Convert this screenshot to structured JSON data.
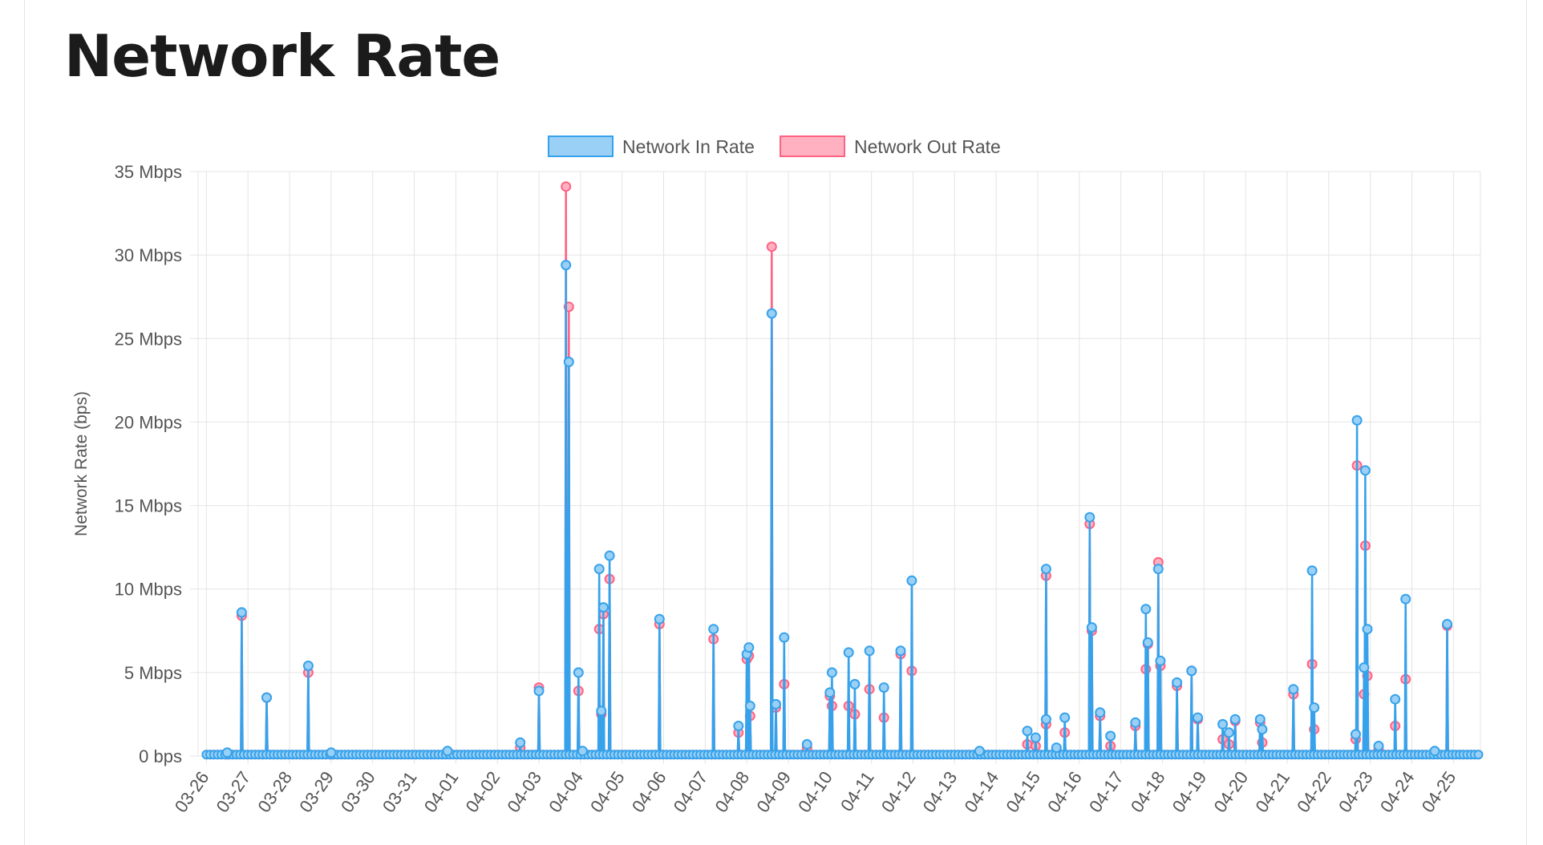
{
  "page": {
    "title": "Network Rate"
  },
  "chart_data": {
    "type": "line",
    "title": "Network Rate",
    "xlabel": "",
    "ylabel": "Network Rate (bps)",
    "ylim": [
      0,
      35
    ],
    "y_unit": "Mbps",
    "y_ticks": [
      "0 bps",
      "5 Mbps",
      "10 Mbps",
      "15 Mbps",
      "20 Mbps",
      "25 Mbps",
      "30 Mbps",
      "35 Mbps"
    ],
    "x_ticks": [
      "03-26",
      "03-27",
      "03-28",
      "03-29",
      "03-30",
      "03-31",
      "04-01",
      "04-02",
      "04-03",
      "04-04",
      "04-05",
      "04-06",
      "04-07",
      "04-08",
      "04-09",
      "04-10",
      "04-11",
      "04-12",
      "04-13",
      "04-14",
      "04-15",
      "04-16",
      "04-17",
      "04-18",
      "04-19",
      "04-20",
      "04-21",
      "04-22",
      "04-23",
      "04-24",
      "04-25"
    ],
    "xlim": [
      -0.2,
      30.65
    ],
    "grid": true,
    "legend_position": "top",
    "series": [
      {
        "name": "Network In Rate",
        "color": "#36a2eb",
        "fill": "#9ad0f5",
        "points": [
          [
            0.85,
            8.6
          ],
          [
            1.45,
            3.5
          ],
          [
            2.45,
            5.4
          ],
          [
            8.0,
            3.9
          ],
          [
            8.65,
            29.4
          ],
          [
            8.72,
            23.6
          ],
          [
            8.95,
            5.0
          ],
          [
            9.45,
            11.2
          ],
          [
            9.5,
            2.7
          ],
          [
            9.55,
            8.9
          ],
          [
            9.7,
            12.0
          ],
          [
            10.9,
            8.2
          ],
          [
            12.2,
            7.6
          ],
          [
            12.8,
            1.8
          ],
          [
            13.0,
            6.1
          ],
          [
            13.05,
            6.5
          ],
          [
            13.08,
            3.0
          ],
          [
            13.6,
            26.5
          ],
          [
            13.7,
            3.1
          ],
          [
            13.9,
            7.1
          ],
          [
            15.0,
            3.8
          ],
          [
            15.05,
            5.0
          ],
          [
            15.45,
            6.2
          ],
          [
            15.6,
            4.3
          ],
          [
            15.95,
            6.3
          ],
          [
            16.3,
            4.1
          ],
          [
            16.7,
            6.3
          ],
          [
            16.97,
            10.5
          ],
          [
            19.75,
            1.5
          ],
          [
            19.95,
            1.1
          ],
          [
            20.2,
            11.2
          ],
          [
            20.2,
            2.2
          ],
          [
            20.65,
            2.3
          ],
          [
            21.25,
            14.3
          ],
          [
            21.3,
            7.7
          ],
          [
            21.5,
            2.6
          ],
          [
            21.75,
            1.2
          ],
          [
            22.35,
            2.0
          ],
          [
            22.6,
            8.8
          ],
          [
            22.65,
            6.8
          ],
          [
            22.9,
            11.2
          ],
          [
            22.95,
            5.7
          ],
          [
            23.35,
            4.4
          ],
          [
            23.7,
            5.1
          ],
          [
            23.85,
            2.3
          ],
          [
            24.45,
            1.9
          ],
          [
            24.6,
            1.4
          ],
          [
            24.75,
            2.2
          ],
          [
            25.35,
            2.2
          ],
          [
            25.4,
            1.6
          ],
          [
            26.15,
            4.0
          ],
          [
            26.6,
            11.1
          ],
          [
            26.65,
            2.9
          ],
          [
            27.65,
            1.3
          ],
          [
            27.68,
            20.1
          ],
          [
            27.85,
            5.3
          ],
          [
            27.88,
            17.1
          ],
          [
            27.93,
            7.6
          ],
          [
            28.6,
            3.4
          ],
          [
            28.85,
            9.4
          ],
          [
            29.85,
            7.9
          ],
          [
            0.5,
            0.2
          ],
          [
            3.0,
            0.2
          ],
          [
            5.8,
            0.3
          ],
          [
            7.55,
            0.8
          ],
          [
            9.05,
            0.3
          ],
          [
            14.45,
            0.7
          ],
          [
            18.6,
            0.3
          ],
          [
            20.45,
            0.5
          ],
          [
            28.2,
            0.6
          ],
          [
            29.55,
            0.3
          ]
        ]
      },
      {
        "name": "Network Out Rate",
        "color": "#ff6384",
        "fill": "#ffb1c1",
        "points": [
          [
            0.85,
            8.4
          ],
          [
            1.45,
            3.5
          ],
          [
            2.45,
            5.0
          ],
          [
            8.0,
            4.1
          ],
          [
            8.65,
            34.1
          ],
          [
            8.72,
            26.9
          ],
          [
            8.95,
            3.9
          ],
          [
            9.45,
            7.6
          ],
          [
            9.5,
            2.5
          ],
          [
            9.55,
            8.5
          ],
          [
            9.7,
            10.6
          ],
          [
            10.9,
            7.9
          ],
          [
            12.2,
            7.0
          ],
          [
            12.8,
            1.4
          ],
          [
            13.0,
            5.8
          ],
          [
            13.05,
            6.0
          ],
          [
            13.08,
            2.4
          ],
          [
            13.6,
            30.5
          ],
          [
            13.7,
            2.9
          ],
          [
            13.9,
            4.3
          ],
          [
            15.0,
            3.6
          ],
          [
            15.05,
            3.0
          ],
          [
            15.45,
            3.0
          ],
          [
            15.6,
            2.5
          ],
          [
            15.95,
            4.0
          ],
          [
            16.3,
            2.3
          ],
          [
            16.7,
            6.1
          ],
          [
            16.97,
            5.1
          ],
          [
            19.75,
            0.7
          ],
          [
            19.95,
            0.6
          ],
          [
            20.2,
            10.8
          ],
          [
            20.2,
            1.9
          ],
          [
            20.65,
            1.4
          ],
          [
            21.25,
            13.9
          ],
          [
            21.3,
            7.5
          ],
          [
            21.5,
            2.4
          ],
          [
            21.75,
            0.6
          ],
          [
            22.35,
            1.8
          ],
          [
            22.6,
            5.2
          ],
          [
            22.65,
            6.7
          ],
          [
            22.9,
            11.6
          ],
          [
            22.95,
            5.4
          ],
          [
            23.35,
            4.2
          ],
          [
            23.7,
            5.1
          ],
          [
            23.85,
            2.2
          ],
          [
            24.45,
            1.0
          ],
          [
            24.6,
            0.7
          ],
          [
            24.75,
            2.1
          ],
          [
            25.35,
            2.0
          ],
          [
            25.4,
            0.8
          ],
          [
            26.15,
            3.7
          ],
          [
            26.6,
            5.5
          ],
          [
            26.65,
            1.6
          ],
          [
            27.65,
            1.0
          ],
          [
            27.68,
            17.4
          ],
          [
            27.85,
            3.7
          ],
          [
            27.88,
            12.6
          ],
          [
            27.93,
            4.8
          ],
          [
            28.6,
            1.8
          ],
          [
            28.85,
            4.6
          ],
          [
            29.85,
            7.8
          ],
          [
            0.5,
            0.1
          ],
          [
            3.0,
            0.1
          ],
          [
            5.8,
            0.2
          ],
          [
            7.55,
            0.5
          ],
          [
            9.05,
            0.2
          ],
          [
            14.45,
            0.5
          ],
          [
            18.6,
            0.2
          ],
          [
            20.45,
            0.4
          ],
          [
            28.2,
            0.4
          ],
          [
            29.55,
            0.2
          ]
        ]
      }
    ]
  }
}
